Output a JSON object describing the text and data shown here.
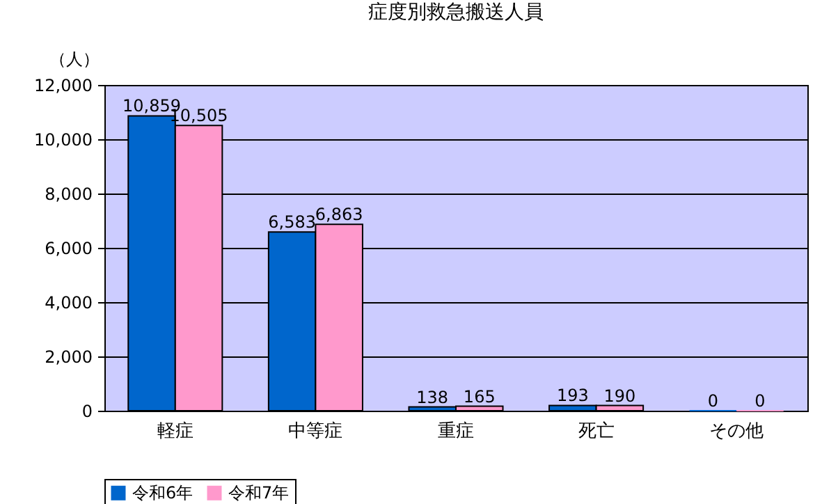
{
  "chart_data": {
    "type": "bar",
    "title": "症度別救急搬送人員",
    "ylabel": "（人）",
    "categories": [
      "軽症",
      "中等症",
      "重症",
      "死亡",
      "その他"
    ],
    "series": [
      {
        "name": "令和6年",
        "color": "#0066cc",
        "values": [
          10859,
          6583,
          138,
          193,
          0
        ],
        "value_labels": [
          "10,859",
          "6,583",
          "138",
          "193",
          "0"
        ]
      },
      {
        "name": "令和7年",
        "color": "#ff99cc",
        "values": [
          10505,
          6863,
          165,
          190,
          0
        ],
        "value_labels": [
          "10,505",
          "6,863",
          "165",
          "190",
          "0"
        ]
      }
    ],
    "ylim": [
      0,
      12000
    ],
    "yticks": [
      0,
      {
        "value": 2000,
        "label": "2,000"
      },
      {
        "value": 4000,
        "label": "4,000"
      },
      {
        "value": 6000,
        "label": "6,000"
      },
      {
        "value": 8000,
        "label": "8,000"
      },
      {
        "value": 10000,
        "label": "10,000"
      },
      {
        "value": 12000,
        "label": "12,000"
      }
    ],
    "grid": "y",
    "legend": "bottom"
  }
}
